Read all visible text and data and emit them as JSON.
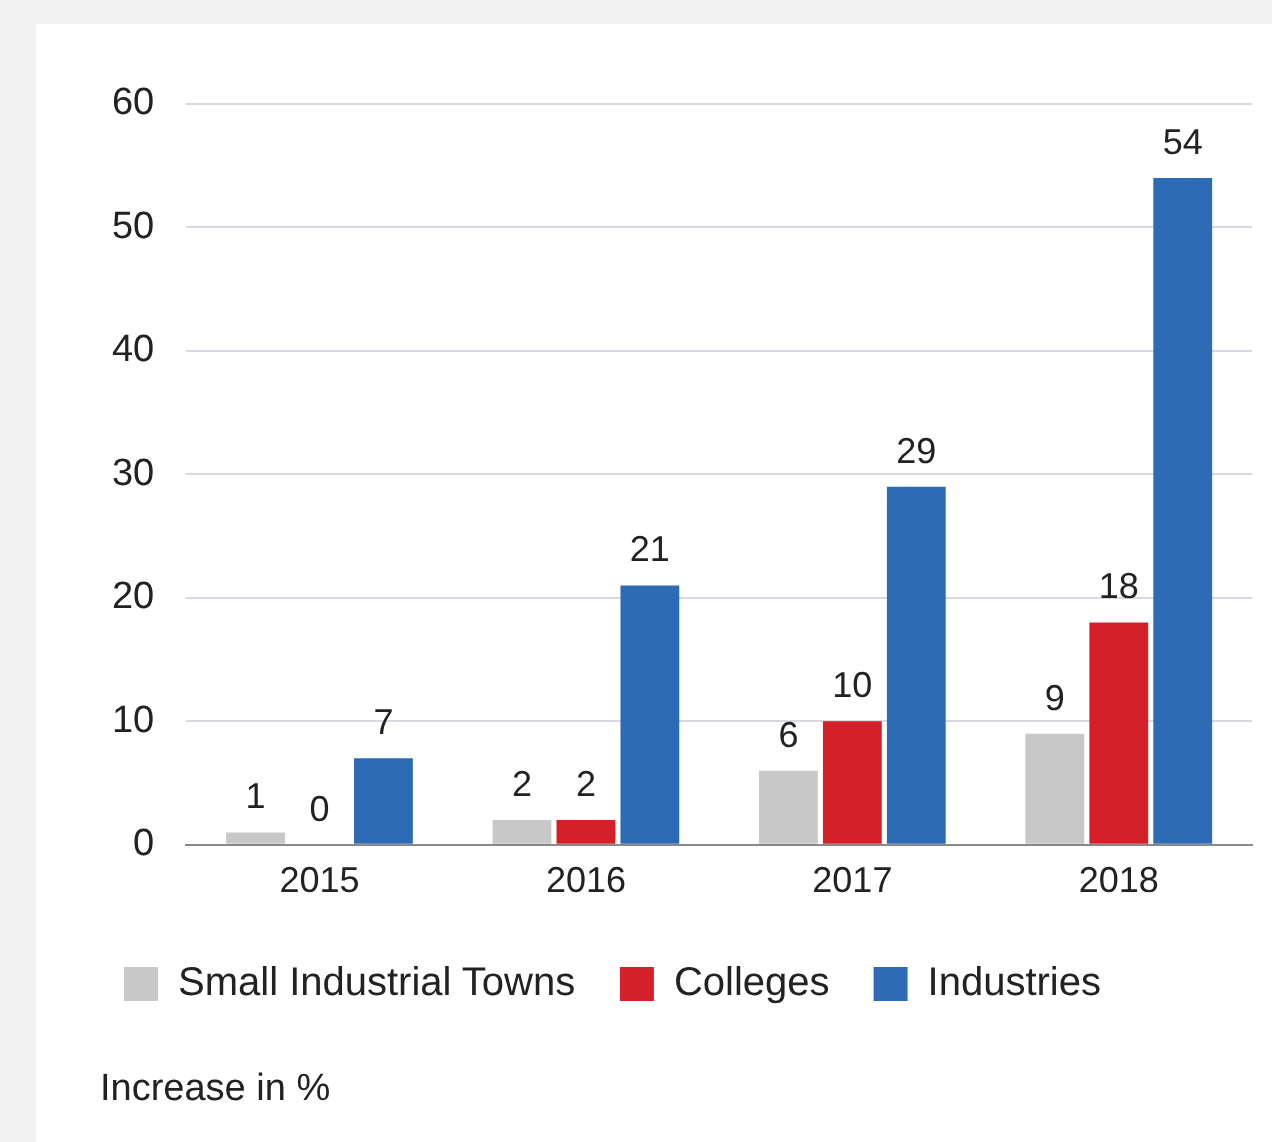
{
  "chart_data": {
    "type": "bar",
    "categories": [
      "2015",
      "2016",
      "2017",
      "2018"
    ],
    "series": [
      {
        "name": "Small Industrial Towns",
        "color": "#c8c8c8",
        "values": [
          1,
          2,
          6,
          9
        ]
      },
      {
        "name": "Colleges",
        "color": "#d42129",
        "values": [
          0,
          2,
          10,
          18
        ]
      },
      {
        "name": "Industries",
        "color": "#2e6bb6",
        "values": [
          7,
          21,
          29,
          54
        ]
      }
    ],
    "ylim": [
      0,
      60
    ],
    "yticks": [
      0,
      10,
      20,
      30,
      40,
      50,
      60
    ],
    "grid": "y",
    "legend": "bottom",
    "data_labels": true,
    "annotations": [
      "Increase in %"
    ]
  }
}
